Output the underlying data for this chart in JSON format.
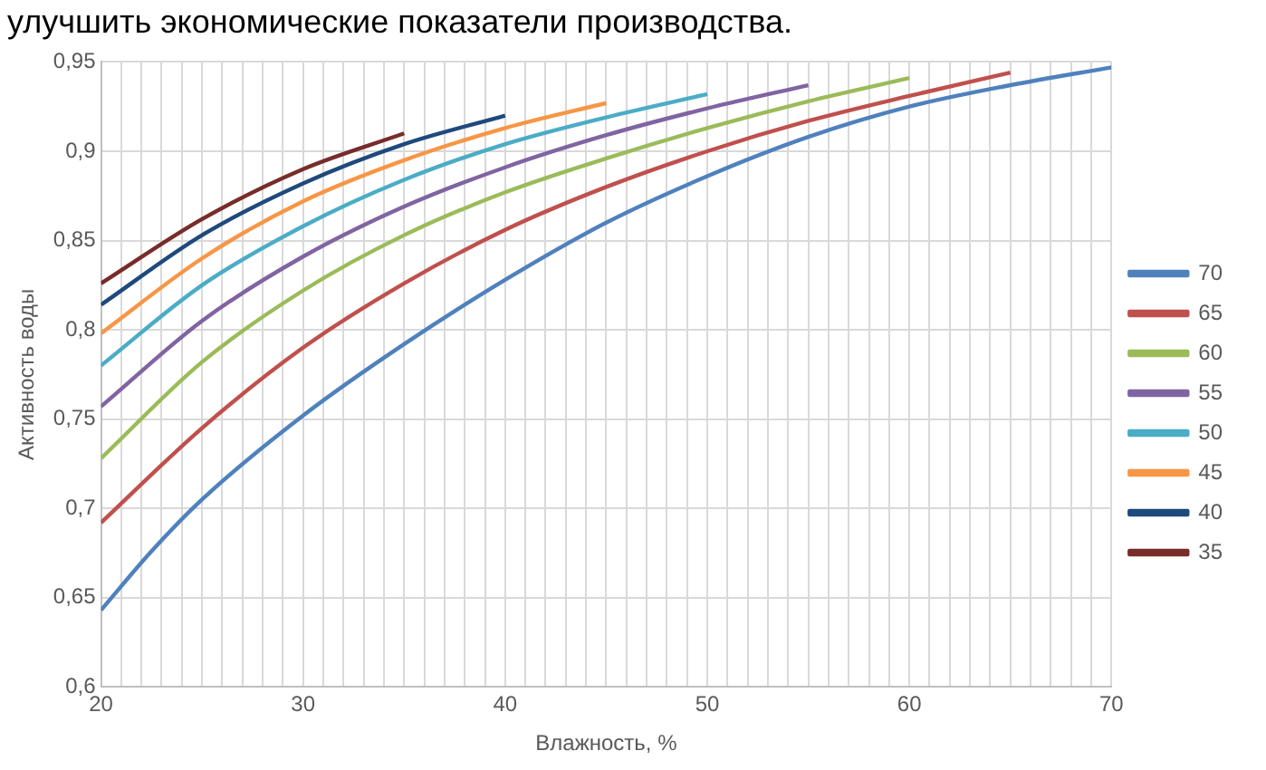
{
  "chart_data": {
    "type": "line",
    "annotations": [
      "улучшить экономические показатели производства."
    ],
    "xlabel": "Влажность, %",
    "ylabel": "Активность воды",
    "xlim": [
      20,
      70
    ],
    "ylim": [
      0.6,
      0.95
    ],
    "xticks": [
      20,
      {
        "value": 21,
        "label": null
      },
      {
        "value": 22,
        "label": null
      },
      {
        "value": 23,
        "label": null
      },
      {
        "value": 24,
        "label": null
      },
      {
        "value": 25,
        "label": null
      },
      {
        "value": 26,
        "label": null
      },
      {
        "value": 27,
        "label": null
      },
      {
        "value": 28,
        "label": null
      },
      {
        "value": 29,
        "label": null
      },
      30,
      {
        "value": 31,
        "label": null
      },
      {
        "value": 32,
        "label": null
      },
      {
        "value": 33,
        "label": null
      },
      {
        "value": 34,
        "label": null
      },
      {
        "value": 35,
        "label": null
      },
      {
        "value": 36,
        "label": null
      },
      {
        "value": 37,
        "label": null
      },
      {
        "value": 38,
        "label": null
      },
      {
        "value": 39,
        "label": null
      },
      40,
      {
        "value": 41,
        "label": null
      },
      {
        "value": 42,
        "label": null
      },
      {
        "value": 43,
        "label": null
      },
      {
        "value": 44,
        "label": null
      },
      {
        "value": 45,
        "label": null
      },
      {
        "value": 46,
        "label": null
      },
      {
        "value": 47,
        "label": null
      },
      {
        "value": 48,
        "label": null
      },
      {
        "value": 49,
        "label": null
      },
      50,
      {
        "value": 51,
        "label": null
      },
      {
        "value": 52,
        "label": null
      },
      {
        "value": 53,
        "label": null
      },
      {
        "value": 54,
        "label": null
      },
      {
        "value": 55,
        "label": null
      },
      {
        "value": 56,
        "label": null
      },
      {
        "value": 57,
        "label": null
      },
      {
        "value": 58,
        "label": null
      },
      {
        "value": 59,
        "label": null
      },
      60,
      {
        "value": 61,
        "label": null
      },
      {
        "value": 62,
        "label": null
      },
      {
        "value": 63,
        "label": null
      },
      {
        "value": 64,
        "label": null
      },
      {
        "value": 65,
        "label": null
      },
      {
        "value": 66,
        "label": null
      },
      {
        "value": 67,
        "label": null
      },
      {
        "value": 68,
        "label": null
      },
      {
        "value": 69,
        "label": null
      },
      70
    ],
    "yticks": [
      {
        "value": 0.6,
        "label": "0,6"
      },
      {
        "value": 0.65,
        "label": "0,65"
      },
      {
        "value": 0.7,
        "label": "0,7"
      },
      {
        "value": 0.75,
        "label": "0,75"
      },
      {
        "value": 0.8,
        "label": "0,8"
      },
      {
        "value": 0.85,
        "label": "0,85"
      },
      {
        "value": 0.9,
        "label": "0,9"
      },
      {
        "value": 0.95,
        "label": "0,95"
      }
    ],
    "grid": true,
    "legend": "right",
    "marker": "none",
    "line_style": "solid",
    "series": [
      {
        "name": "70",
        "color": "#4f81bd",
        "x": [
          20,
          22.5,
          25,
          30,
          35,
          40,
          45,
          50,
          55,
          60,
          65,
          70
        ],
        "values": [
          0.643,
          0.676,
          0.705,
          0.752,
          0.792,
          0.828,
          0.86,
          0.886,
          0.908,
          0.925,
          0.937,
          0.947
        ]
      },
      {
        "name": "65",
        "color": "#c0504d",
        "x": [
          20,
          25,
          30,
          35,
          40,
          45,
          50,
          55,
          60,
          65
        ],
        "values": [
          0.692,
          0.745,
          0.79,
          0.826,
          0.856,
          0.88,
          0.9,
          0.917,
          0.931,
          0.944
        ]
      },
      {
        "name": "60",
        "color": "#9bbb59",
        "x": [
          20,
          25,
          30,
          35,
          40,
          45,
          50,
          55,
          60
        ],
        "values": [
          0.728,
          0.782,
          0.822,
          0.853,
          0.877,
          0.896,
          0.913,
          0.928,
          0.941
        ]
      },
      {
        "name": "55",
        "color": "#8064a2",
        "x": [
          20,
          25,
          30,
          35,
          40,
          45,
          50,
          55
        ],
        "values": [
          0.757,
          0.805,
          0.841,
          0.869,
          0.891,
          0.909,
          0.924,
          0.937
        ]
      },
      {
        "name": "50",
        "color": "#4bacc6",
        "x": [
          20,
          25,
          30,
          35,
          40,
          45,
          50
        ],
        "values": [
          0.78,
          0.825,
          0.858,
          0.884,
          0.904,
          0.919,
          0.932
        ]
      },
      {
        "name": "45",
        "color": "#f79646",
        "x": [
          20,
          25,
          30,
          35,
          40,
          45
        ],
        "values": [
          0.798,
          0.84,
          0.872,
          0.895,
          0.913,
          0.927
        ]
      },
      {
        "name": "40",
        "color": "#1f497d",
        "x": [
          20,
          25,
          30,
          35,
          40
        ],
        "values": [
          0.814,
          0.853,
          0.882,
          0.904,
          0.92
        ]
      },
      {
        "name": "35",
        "color": "#772c2a",
        "x": [
          20,
          25,
          30,
          35
        ],
        "values": [
          0.826,
          0.862,
          0.89,
          0.91
        ]
      }
    ]
  }
}
